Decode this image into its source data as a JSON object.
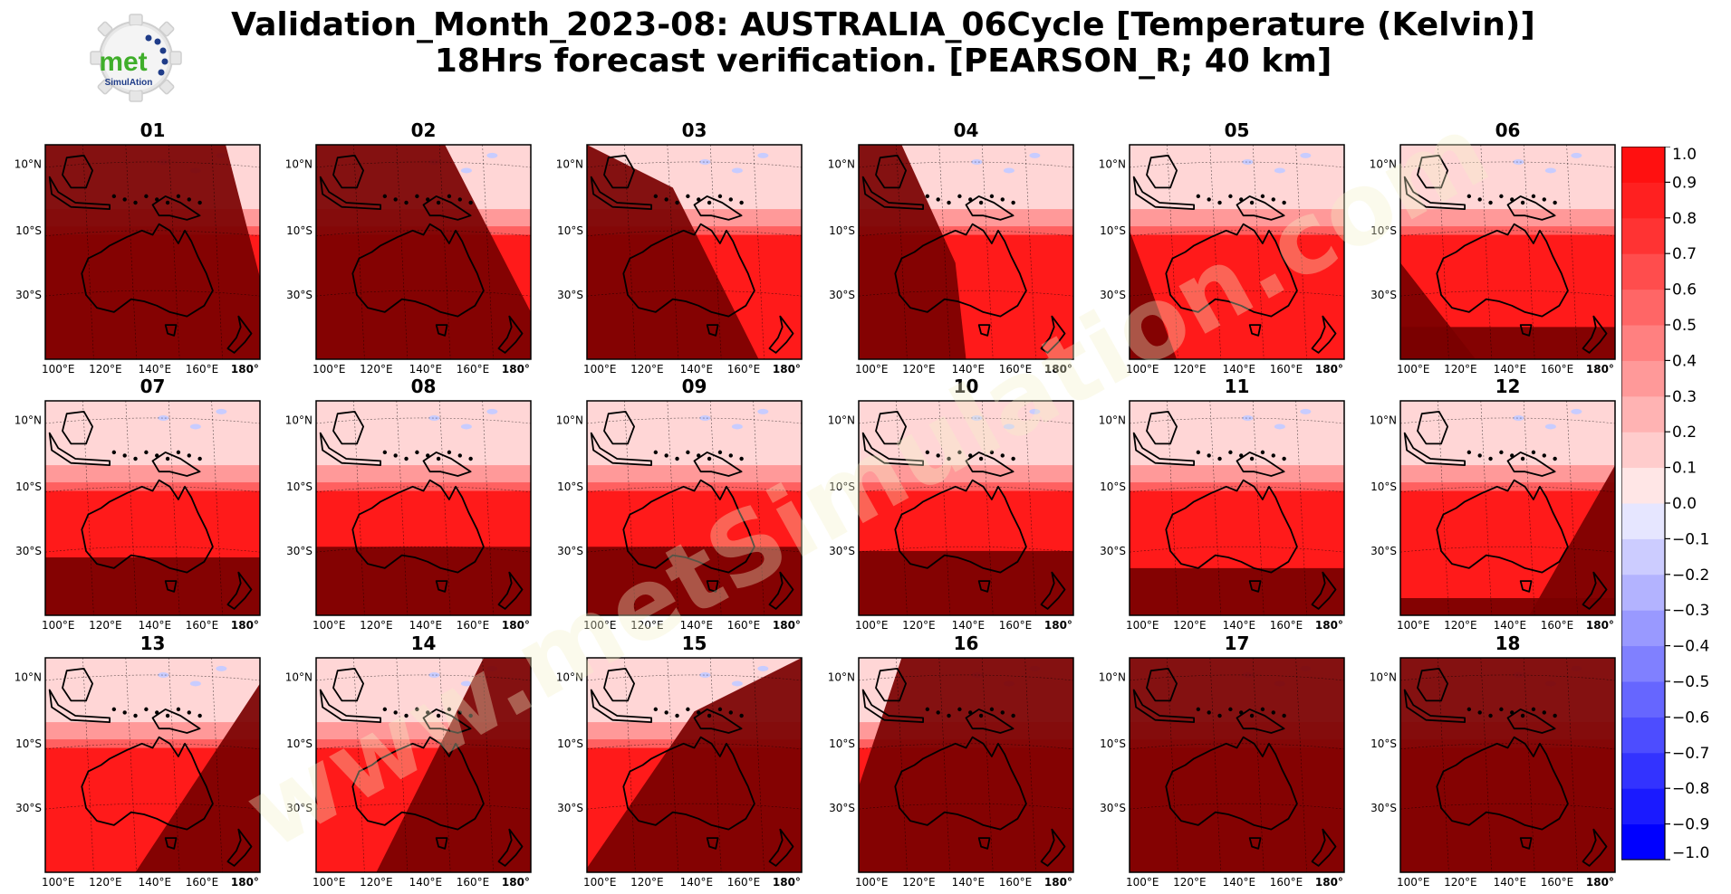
{
  "title": {
    "line1": "Validation_Month_2023-08: AUSTRALIA_06Cycle [Temperature (Kelvin)]",
    "line2": "18Hrs forecast verification.  [PEARSON_R; 40 km]"
  },
  "logo": {
    "text_top": "met",
    "text_bottom": "SimulAtion"
  },
  "watermark": "www.metSimulation.com",
  "colors": {
    "dark_red": "#7a0000",
    "red": "#ff1a1a",
    "axis": "#000000"
  },
  "chart_data": {
    "type": "heatmap",
    "panel_titles": [
      "01",
      "02",
      "03",
      "04",
      "05",
      "06",
      "07",
      "08",
      "09",
      "10",
      "11",
      "12",
      "13",
      "14",
      "15",
      "16",
      "17",
      "18"
    ],
    "lat_tick_labels": [
      "10°N",
      "10°S",
      "30°S"
    ],
    "lon_tick_labels": [
      "100°E",
      "120°E",
      "140°E",
      "160°E",
      "180°"
    ],
    "colorbar": {
      "min": -1.0,
      "max": 1.0,
      "levels": [
        -1.0,
        -0.9,
        -0.8,
        -0.7,
        -0.6,
        -0.5,
        -0.4,
        -0.3,
        -0.2,
        -0.1,
        0.0,
        0.1,
        0.2,
        0.3,
        0.4,
        0.5,
        0.6,
        0.7,
        0.8,
        0.9,
        1.0
      ],
      "tick_labels": [
        "1.0",
        "0.9",
        "0.8",
        "0.7",
        "0.6",
        "0.5",
        "0.4",
        "0.3",
        "0.2",
        "0.1",
        "0.0",
        "−0.1",
        "−0.2",
        "−0.3",
        "−0.4",
        "−0.5",
        "−0.6",
        "−0.7",
        "−0.8",
        "−0.9",
        "−1.0"
      ],
      "colors": [
        "#0000ff",
        "#1a1aff",
        "#3333ff",
        "#4d4dff",
        "#6666ff",
        "#8080ff",
        "#9999ff",
        "#b3b3ff",
        "#ccccff",
        "#e6e6ff",
        "#ffe6e6",
        "#ffcccc",
        "#ffb3b3",
        "#ff9999",
        "#ff8080",
        "#ff6666",
        "#ff4d4d",
        "#ff3333",
        "#ff2020",
        "#ff1010"
      ]
    }
  }
}
